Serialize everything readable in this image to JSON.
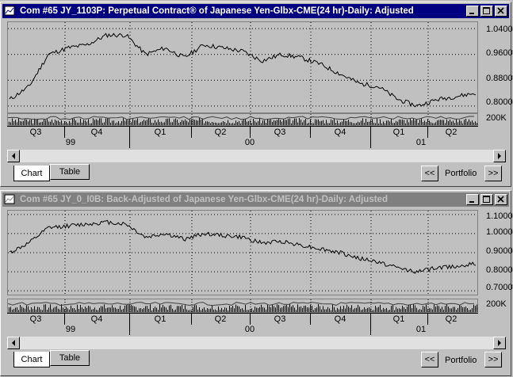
{
  "windows": [
    {
      "title": "Com #65 JY_1103P: Perpetual Contract® of Japanese Yen-Glbx-CME(24 hr)-Daily: Adjusted",
      "active": true,
      "tabs": {
        "chart": "Chart",
        "table": "Table"
      },
      "portfolio_label": "Portfolio",
      "prev_label": "<<",
      "next_label": ">>",
      "volume_label": "200K",
      "quarters": [
        "Q3",
        "Q4",
        "Q1",
        "Q2",
        "Q3",
        "Q4",
        "Q1",
        "Q2"
      ],
      "years": [
        "99",
        "00",
        "01"
      ],
      "chart_data": {
        "type": "line",
        "title": "Com #65 JY_1103P: Perpetual Contract® of Japanese Yen-Glbx-CME(24 hr)-Daily: Adjusted",
        "x": [
          "1999-07",
          "1999-08",
          "1999-09",
          "1999-10",
          "1999-11",
          "1999-12",
          "2000-01",
          "2000-02",
          "2000-03",
          "2000-04",
          "2000-05",
          "2000-06",
          "2000-07",
          "2000-08",
          "2000-09",
          "2000-10",
          "2000-11",
          "2000-12",
          "2001-01",
          "2001-02",
          "2001-03",
          "2001-04",
          "2001-05",
          "2001-06",
          "2001-07"
        ],
        "values": [
          0.82,
          0.86,
          0.96,
          0.98,
          0.99,
          1.02,
          1.02,
          0.96,
          0.98,
          0.95,
          0.99,
          0.98,
          0.97,
          0.94,
          0.96,
          0.95,
          0.93,
          0.9,
          0.87,
          0.86,
          0.82,
          0.8,
          0.82,
          0.83,
          0.84
        ],
        "yticks": [
          "1.0400",
          "0.9600",
          "0.8800",
          "0.8000"
        ],
        "ylim": [
          0.78,
          1.06
        ],
        "grid": true
      }
    },
    {
      "title": "Com #65 JY_0_I0B: Back-Adjusted of Japanese Yen-Glbx-CME(24 hr)-Daily: Adjusted",
      "active": false,
      "tabs": {
        "chart": "Chart",
        "table": "Table"
      },
      "portfolio_label": "Portfolio",
      "prev_label": "<<",
      "next_label": ">>",
      "volume_label": "200K",
      "quarters": [
        "Q3",
        "Q4",
        "Q1",
        "Q2",
        "Q3",
        "Q4",
        "Q1",
        "Q2"
      ],
      "years": [
        "99",
        "00",
        "01"
      ],
      "chart_data": {
        "type": "line",
        "title": "Com #65 JY_0_I0B: Back-Adjusted of Japanese Yen-Glbx-CME(24 hr)-Daily: Adjusted",
        "x": [
          "1999-07",
          "1999-08",
          "1999-09",
          "1999-10",
          "1999-11",
          "1999-12",
          "2000-01",
          "2000-02",
          "2000-03",
          "2000-04",
          "2000-05",
          "2000-06",
          "2000-07",
          "2000-08",
          "2000-09",
          "2000-10",
          "2000-11",
          "2000-12",
          "2001-01",
          "2001-02",
          "2001-03",
          "2001-04",
          "2001-05",
          "2001-06",
          "2001-07"
        ],
        "values": [
          0.9,
          0.95,
          1.03,
          1.04,
          1.05,
          1.06,
          1.05,
          0.98,
          1.0,
          0.97,
          1.0,
          0.99,
          0.98,
          0.95,
          0.96,
          0.94,
          0.92,
          0.9,
          0.87,
          0.85,
          0.82,
          0.8,
          0.82,
          0.83,
          0.84
        ],
        "yticks": [
          "1.1000",
          "1.0000",
          "0.9000",
          "0.8000",
          "0.7000"
        ],
        "ylim": [
          0.68,
          1.12
        ],
        "grid": true
      }
    }
  ]
}
